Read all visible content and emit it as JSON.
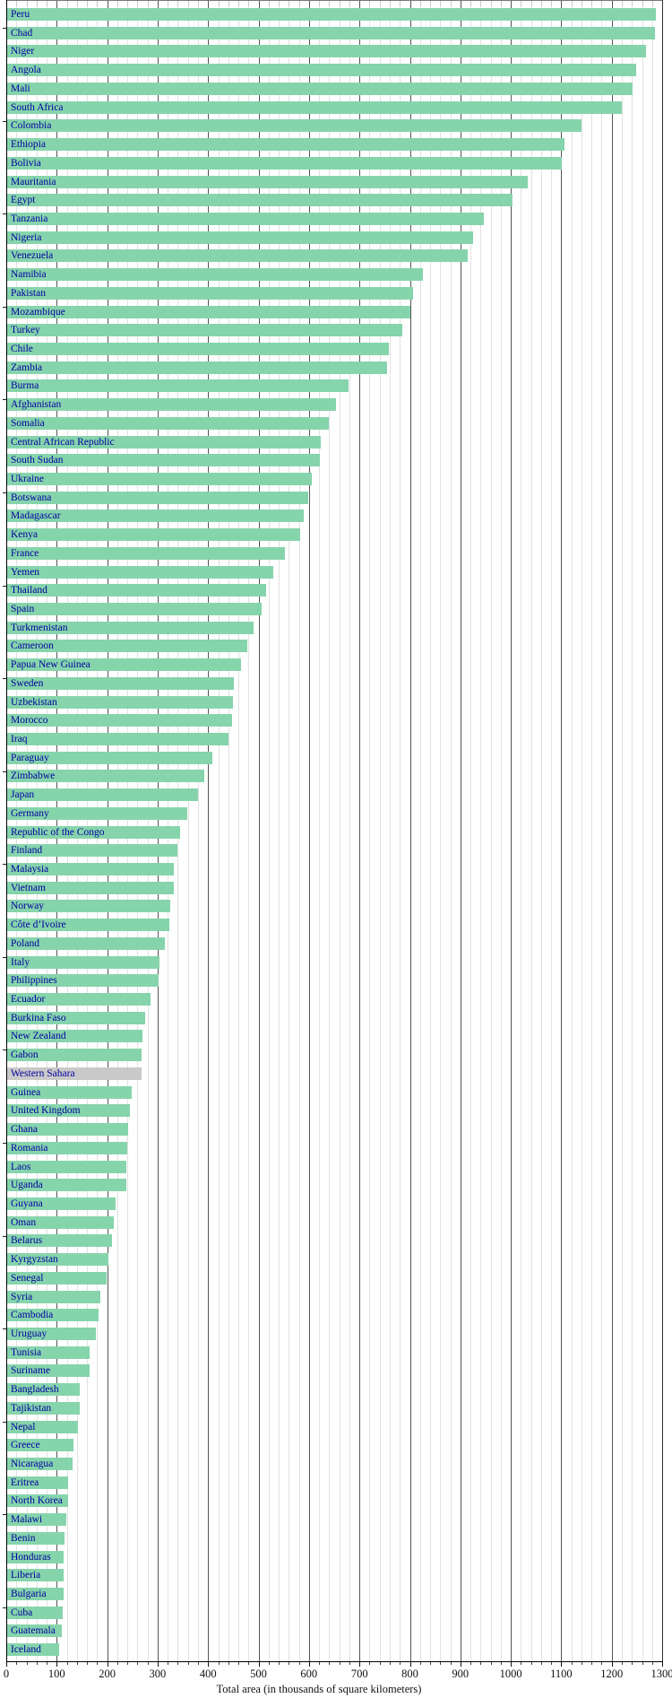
{
  "chart_data": {
    "type": "bar",
    "orientation": "horizontal",
    "xlabel": "Total area (in thousands of square kilometers)",
    "xlim": [
      0,
      1300
    ],
    "x_major_tick_step": 100,
    "x_minor_tick_step": 20,
    "x_tick_labels": [
      "0",
      "100",
      "200",
      "300",
      "400",
      "500",
      "600",
      "700",
      "800",
      "900",
      "1000",
      "1100",
      "1200",
      "1300"
    ],
    "grid": "vertical, minor every 20 (light gray), major every 100 (dark gray)",
    "legend_position": "none",
    "bar_color": "#86d4ac",
    "highlight_color": "#c9c9c9",
    "category_label_color": "#0000a0",
    "highlighted_categories": [
      "Western Sahara"
    ],
    "categories": [
      "Peru",
      "Chad",
      "Niger",
      "Angola",
      "Mali",
      "South Africa",
      "Colombia",
      "Ethiopia",
      "Bolivia",
      "Mauritania",
      "Egypt",
      "Tanzania",
      "Nigeria",
      "Venezuela",
      "Namibia",
      "Pakistan",
      "Mozambique",
      "Turkey",
      "Chile",
      "Zambia",
      "Burma",
      "Afghanistan",
      "Somalia",
      "Central African Republic",
      "South Sudan",
      "Ukraine",
      "Botswana",
      "Madagascar",
      "Kenya",
      "France",
      "Yemen",
      "Thailand",
      "Spain",
      "Turkmenistan",
      "Cameroon",
      "Papua New Guinea",
      "Sweden",
      "Uzbekistan",
      "Morocco",
      "Iraq",
      "Paraguay",
      "Zimbabwe",
      "Japan",
      "Germany",
      "Republic of the Congo",
      "Finland",
      "Malaysia",
      "Vietnam",
      "Norway",
      "Côte d’Ivoire",
      "Poland",
      "Italy",
      "Philippines",
      "Ecuador",
      "Burkina Faso",
      "New Zealand",
      "Gabon",
      "Western Sahara",
      "Guinea",
      "United Kingdom",
      "Ghana",
      "Romania",
      "Laos",
      "Uganda",
      "Guyana",
      "Oman",
      "Belarus",
      "Kyrgyzstan",
      "Senegal",
      "Syria",
      "Cambodia",
      "Uruguay",
      "Tunisia",
      "Suriname",
      "Bangladesh",
      "Tajikistan",
      "Nepal",
      "Greece",
      "Nicaragua",
      "Eritrea",
      "North Korea",
      "Malawi",
      "Benin",
      "Honduras",
      "Liberia",
      "Bulgaria",
      "Cuba",
      "Guatemala",
      "Iceland"
    ],
    "values": [
      1285,
      1284,
      1267,
      1247,
      1240,
      1219,
      1139,
      1104,
      1099,
      1031,
      1001,
      945,
      924,
      912,
      824,
      804,
      799,
      783,
      756,
      753,
      677,
      652,
      638,
      622,
      619,
      604,
      597,
      587,
      580,
      551,
      528,
      513,
      505,
      488,
      475,
      463,
      450,
      447,
      446,
      438,
      407,
      391,
      378,
      357,
      342,
      338,
      331,
      330,
      324,
      322,
      313,
      301,
      300,
      284,
      274,
      268,
      267,
      266,
      246,
      244,
      239,
      238,
      237,
      236,
      215,
      212,
      208,
      200,
      197,
      185,
      181,
      176,
      164,
      163,
      144,
      143,
      141,
      132,
      130,
      121,
      120,
      118,
      113,
      112,
      111,
      111,
      110,
      109,
      103
    ]
  }
}
